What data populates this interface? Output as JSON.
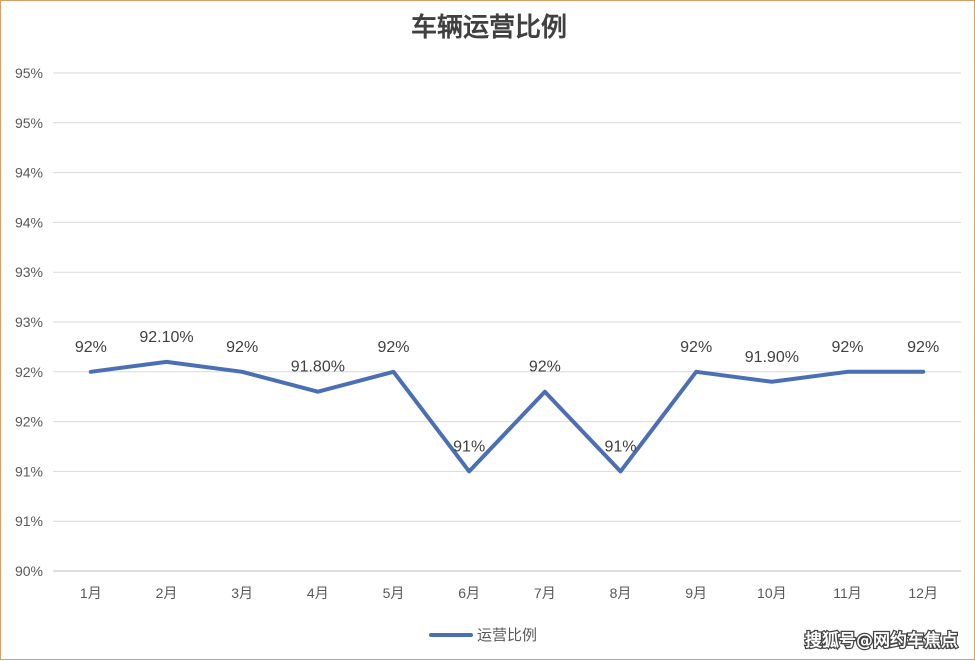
{
  "chart_data": {
    "type": "line",
    "title": "车辆运营比例",
    "categories": [
      "1月",
      "2月",
      "3月",
      "4月",
      "5月",
      "6月",
      "7月",
      "8月",
      "9月",
      "10月",
      "11月",
      "12月"
    ],
    "series": [
      {
        "name": "运营比例",
        "color": "#4a6fb5",
        "values": [
          92.0,
          92.1,
          92.0,
          91.8,
          92.0,
          91.0,
          91.8,
          91.0,
          92.0,
          91.9,
          92.0,
          92.0
        ],
        "data_labels": [
          "92%",
          "92.10%",
          "92%",
          "91.80%",
          "92%",
          "91%",
          "92%",
          "91%",
          "92%",
          "91.90%",
          "92%",
          "92%"
        ]
      }
    ],
    "y_tick_labels": [
      "90%",
      "91%",
      "91%",
      "92%",
      "92%",
      "93%",
      "93%",
      "94%",
      "94%",
      "95%",
      "95%"
    ],
    "ylim": [
      90,
      95
    ],
    "xlabel": "",
    "ylabel": "",
    "grid": true,
    "legend_position": "bottom"
  },
  "watermark": "搜狐号@网约车焦点"
}
